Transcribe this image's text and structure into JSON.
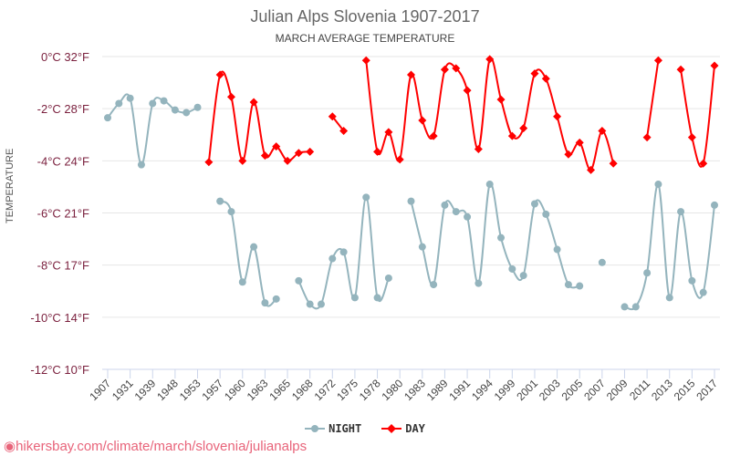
{
  "chart_data": {
    "type": "line",
    "title": "Julian Alps Slovenia 1907-2017",
    "subtitle": "MARCH AVERAGE TEMPERATURE",
    "ylabel": "TEMPERATURE",
    "ylim": [
      -12,
      0
    ],
    "y_ticks": [
      {
        "v": 0,
        "label": "0°C 32°F"
      },
      {
        "v": -2,
        "label": "-2°C 28°F"
      },
      {
        "v": -4,
        "label": "-4°C 24°F"
      },
      {
        "v": -6,
        "label": "-6°C 21°F"
      },
      {
        "v": -8,
        "label": "-8°C 17°F"
      },
      {
        "v": -10,
        "label": "-10°C 14°F"
      },
      {
        "v": -12,
        "label": "-12°C 10°F"
      }
    ],
    "x_tick_labels": [
      "1907",
      "1931",
      "1939",
      "1948",
      "1953",
      "1957",
      "1960",
      "1963",
      "1965",
      "1968",
      "1972",
      "1975",
      "1978",
      "1980",
      "1983",
      "1989",
      "1991",
      "1994",
      "1999",
      "2001",
      "2003",
      "2005",
      "2007",
      "2009",
      "2011",
      "2013",
      "2015",
      "2017"
    ],
    "point_count": 55,
    "grid": true,
    "legend_position": "bottom",
    "series": [
      {
        "name": "NIGHT",
        "color": "#94b4bd",
        "marker": "circle",
        "values": [
          -2.35,
          -1.8,
          -1.6,
          -4.15,
          -1.8,
          -1.7,
          -2.05,
          -2.15,
          -1.95,
          null,
          -5.55,
          -5.95,
          -8.65,
          -7.3,
          -9.45,
          -9.3,
          null,
          -8.6,
          -9.5,
          -9.5,
          -7.75,
          -7.5,
          -9.25,
          -5.4,
          -9.25,
          -8.5,
          null,
          -5.55,
          -7.3,
          -8.75,
          -5.7,
          -5.95,
          -6.15,
          -8.7,
          -4.9,
          -6.95,
          -8.15,
          -8.4,
          -5.65,
          -6.05,
          -7.4,
          -8.75,
          -8.8,
          null,
          -7.9,
          null,
          -9.6,
          -9.6,
          -8.3,
          -4.9,
          -9.25,
          -5.95,
          -8.6,
          -9.05,
          -5.7
        ]
      },
      {
        "name": "DAY",
        "color": "#ff0000",
        "marker": "diamond",
        "values": [
          null,
          null,
          null,
          null,
          null,
          null,
          null,
          null,
          null,
          -4.05,
          -0.7,
          -1.55,
          -4.0,
          -1.75,
          -3.8,
          -3.45,
          -4.0,
          -3.7,
          -3.65,
          null,
          -2.3,
          -2.85,
          null,
          -0.15,
          -3.65,
          -2.9,
          -3.95,
          -0.7,
          -2.45,
          -3.05,
          -0.5,
          -0.45,
          -1.3,
          -3.55,
          -0.1,
          -1.65,
          -3.05,
          -2.75,
          -0.65,
          -0.85,
          -2.3,
          -3.75,
          -3.3,
          -4.35,
          -2.85,
          -4.1,
          null,
          null,
          -3.1,
          -0.15,
          null,
          -0.5,
          -3.1,
          -4.1,
          -0.35
        ]
      }
    ]
  },
  "watermark": "hikersbay.com/climate/march/slovenia/julianalps"
}
